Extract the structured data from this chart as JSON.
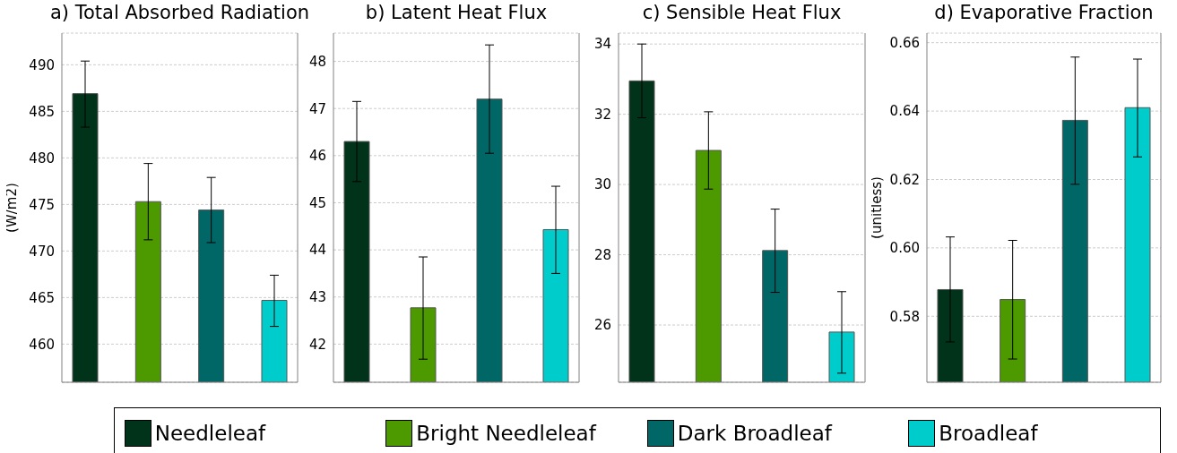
{
  "chart_data": [
    {
      "type": "bar",
      "title": "a) Total Absorbed Radiation",
      "ylabel": "(W/m2)",
      "categories": [
        null
      ],
      "ylim": [
        455.9,
        493.4
      ],
      "yticks": [
        460,
        465,
        470,
        475,
        480,
        485,
        490
      ],
      "grid": "y",
      "tick_labels": "y",
      "legend": "bottom",
      "series": [
        {
          "name": "Needleleaf",
          "color": "#003319",
          "values": [
            486.9
          ],
          "errors": [
            [
              483.3,
              490.4
            ]
          ]
        },
        {
          "name": "Bright Needleleaf",
          "color": "#4c9900",
          "values": [
            475.3
          ],
          "errors": [
            [
              471.2,
              479.4
            ]
          ]
        },
        {
          "name": "Dark Broadleaf",
          "color": "#006666",
          "values": [
            474.4
          ],
          "errors": [
            [
              470.9,
              477.9
            ]
          ]
        },
        {
          "name": "Broadleaf",
          "color": "#00cccc",
          "values": [
            464.7
          ],
          "errors": [
            [
              461.9,
              467.4
            ]
          ]
        }
      ]
    },
    {
      "type": "bar",
      "title": "b) Latent Heat Flux",
      "categories": [
        null
      ],
      "ylim": [
        41.19,
        48.6
      ],
      "yticks": [
        42,
        43,
        44,
        45,
        46,
        47,
        48
      ],
      "grid": "y",
      "tick_labels": "y",
      "series": [
        {
          "color": "#003319",
          "values": [
            46.3
          ],
          "errors": [
            [
              45.45,
              47.15
            ]
          ]
        },
        {
          "color": "#4c9900",
          "values": [
            42.77
          ],
          "errors": [
            [
              41.68,
              43.85
            ]
          ]
        },
        {
          "color": "#006666",
          "values": [
            47.2
          ],
          "errors": [
            [
              46.05,
              48.35
            ]
          ]
        },
        {
          "color": "#00cccc",
          "values": [
            44.43
          ],
          "errors": [
            [
              43.5,
              45.35
            ]
          ]
        }
      ]
    },
    {
      "type": "bar",
      "title": "c) Sensible Heat Flux",
      "categories": [
        null
      ],
      "ylim": [
        24.37,
        34.31
      ],
      "yticks": [
        26,
        28,
        30,
        32,
        34
      ],
      "grid": "y",
      "tick_labels": "y",
      "series": [
        {
          "color": "#003319",
          "values": [
            32.95
          ],
          "errors": [
            [
              31.9,
              34.0
            ]
          ]
        },
        {
          "color": "#4c9900",
          "values": [
            30.97
          ],
          "errors": [
            [
              29.87,
              32.07
            ]
          ]
        },
        {
          "color": "#006666",
          "values": [
            28.12
          ],
          "errors": [
            [
              26.93,
              29.3
            ]
          ]
        },
        {
          "color": "#00cccc",
          "values": [
            25.8
          ],
          "errors": [
            [
              24.63,
              26.95
            ]
          ]
        }
      ]
    },
    {
      "type": "bar",
      "title": "d) Evaporative Fraction",
      "ylabel": "(unitless)",
      "categories": [
        null
      ],
      "ylim": [
        0.5607,
        0.6628
      ],
      "yticks": [
        0.58,
        {
          "value": 0.6,
          "label": "0.60"
        },
        0.62,
        0.64,
        0.66
      ],
      "grid": "y",
      "tick_labels": "y",
      "series": [
        {
          "color": "#003319",
          "values": [
            0.5878
          ],
          "errors": [
            [
              0.5725,
              0.6032
            ]
          ]
        },
        {
          "color": "#4c9900",
          "values": [
            0.5849
          ],
          "errors": [
            [
              0.5675,
              0.6022
            ]
          ]
        },
        {
          "color": "#006666",
          "values": [
            0.6373
          ],
          "errors": [
            [
              0.6186,
              0.6558
            ]
          ]
        },
        {
          "color": "#00cccc",
          "values": [
            0.641
          ],
          "errors": [
            [
              0.6266,
              0.6552
            ]
          ]
        }
      ]
    }
  ]
}
